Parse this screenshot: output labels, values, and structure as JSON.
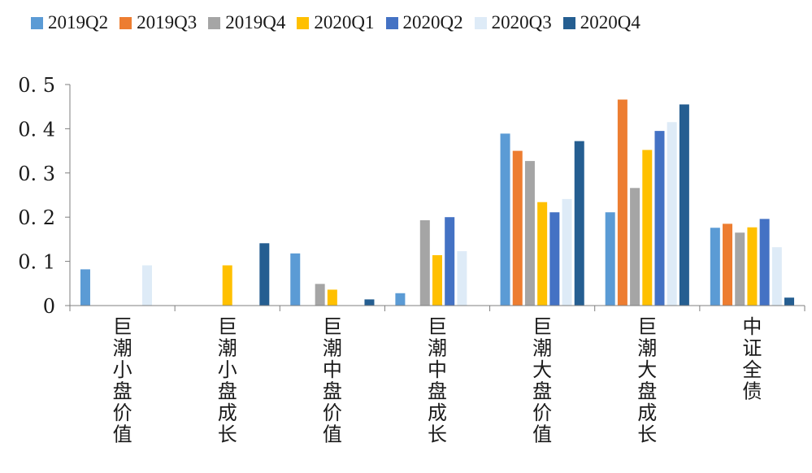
{
  "chart_data": {
    "type": "bar",
    "categories": [
      "巨潮小盘价值",
      "巨潮小盘成长",
      "巨潮中盘价值",
      "巨潮中盘成长",
      "巨潮大盘价值",
      "巨潮大盘成长",
      "中证全债"
    ],
    "series": [
      {
        "name": "2019Q2",
        "color": "#5b9bd5",
        "values": [
          0.082,
          0,
          0.118,
          0.028,
          0.389,
          0.211,
          0.176
        ]
      },
      {
        "name": "2019Q3",
        "color": "#ed7d31",
        "values": [
          0,
          0,
          0,
          0,
          0.35,
          0.466,
          0.185
        ]
      },
      {
        "name": "2019Q4",
        "color": "#a5a5a5",
        "values": [
          0,
          0,
          0.049,
          0.193,
          0.327,
          0.266,
          0.165
        ]
      },
      {
        "name": "2020Q1",
        "color": "#ffc000",
        "values": [
          0,
          0.091,
          0.036,
          0.114,
          0.234,
          0.352,
          0.177
        ]
      },
      {
        "name": "2020Q2",
        "color": "#4472c4",
        "values": [
          0,
          0,
          0,
          0.2,
          0.211,
          0.395,
          0.196
        ]
      },
      {
        "name": "2020Q3",
        "color": "#deebf7",
        "values": [
          0.091,
          0,
          0,
          0.123,
          0.241,
          0.415,
          0.132
        ]
      },
      {
        "name": "2020Q4",
        "color": "#255e91",
        "values": [
          0,
          0.141,
          0.014,
          0,
          0.372,
          0.455,
          0.018
        ]
      }
    ],
    "ylim": [
      0,
      0.5
    ],
    "yticks": [
      "0",
      "0. 1",
      "0. 2",
      "0. 3",
      "0. 4",
      "0. 5"
    ],
    "title": "",
    "xlabel": "",
    "ylabel": "",
    "grid": false,
    "legend_position": "top"
  }
}
